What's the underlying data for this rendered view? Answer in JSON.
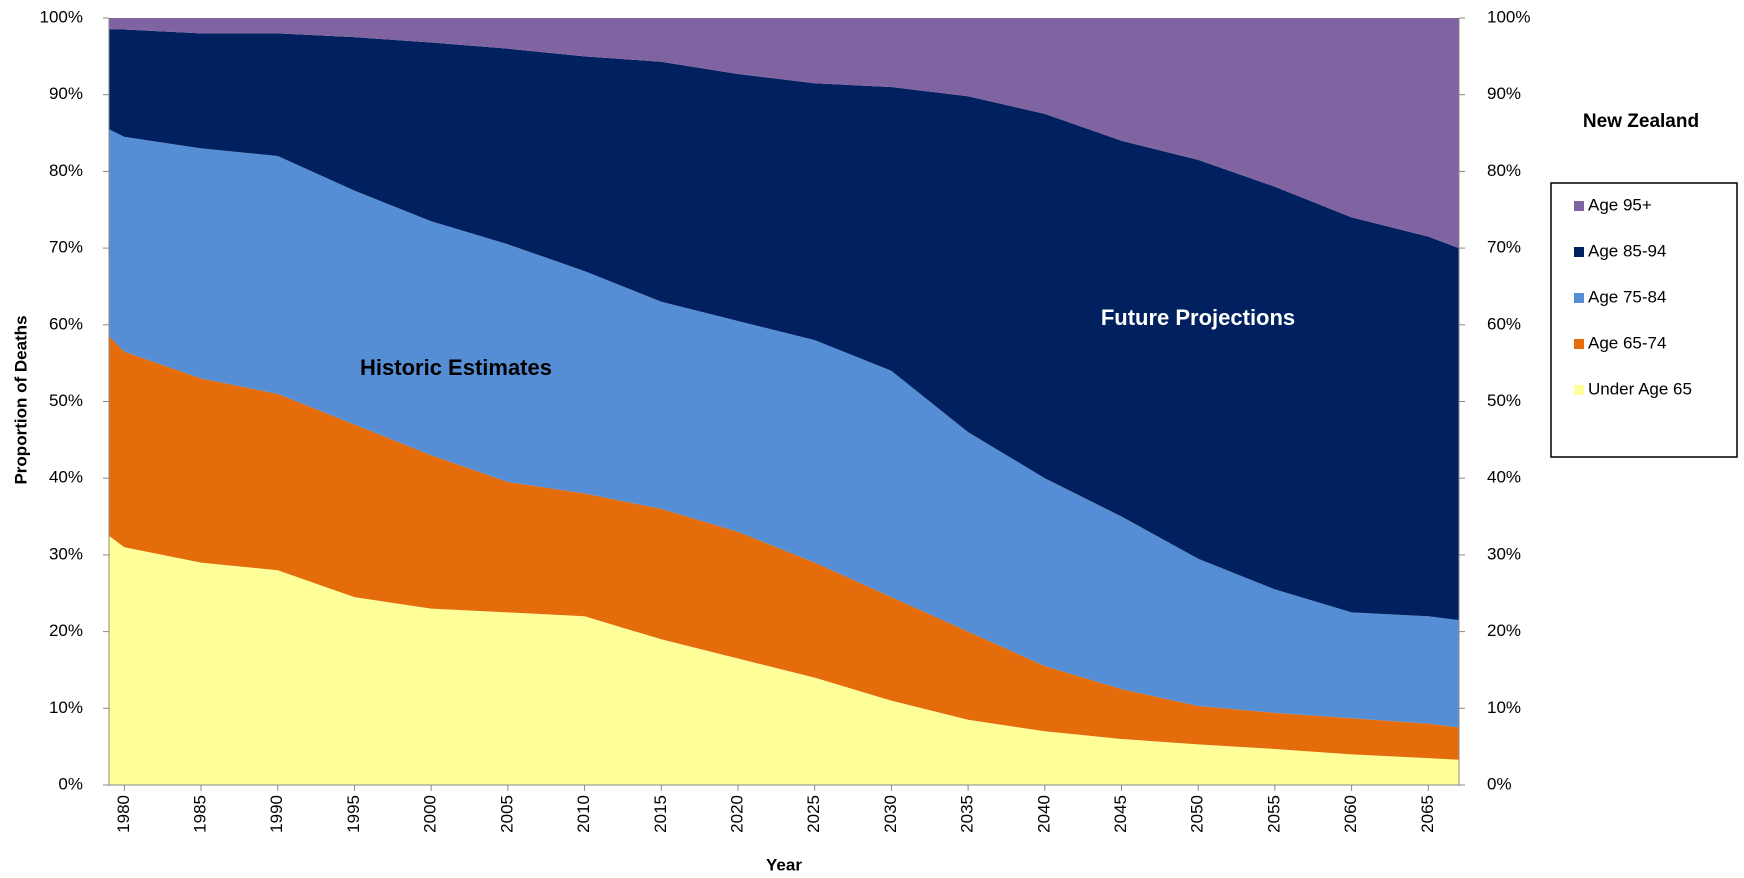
{
  "chart_data": {
    "type": "stacked_area",
    "x_label": "Year",
    "y_label": "Proportion of Deaths",
    "legend_title": "New Zealand",
    "annotations": [
      "Historic Estimates",
      "Future Projections"
    ],
    "x": [
      1979,
      1980,
      1985,
      1990,
      1995,
      2000,
      2005,
      2010,
      2015,
      2020,
      2025,
      2030,
      2035,
      2040,
      2045,
      2050,
      2055,
      2060,
      2065,
      2067
    ],
    "xlim": [
      1979,
      2067
    ],
    "xticks": [
      1980,
      1985,
      1990,
      1995,
      2000,
      2005,
      2010,
      2015,
      2020,
      2025,
      2030,
      2035,
      2040,
      2045,
      2050,
      2055,
      2060,
      2065
    ],
    "ylim": [
      0,
      100
    ],
    "yticks": [
      {
        "value": 0,
        "label": "0%"
      },
      {
        "value": 10,
        "label": "10%"
      },
      {
        "value": 20,
        "label": "20%"
      },
      {
        "value": 30,
        "label": "30%"
      },
      {
        "value": 40,
        "label": "40%"
      },
      {
        "value": 50,
        "label": "50%"
      },
      {
        "value": 60,
        "label": "60%"
      },
      {
        "value": 70,
        "label": "70%"
      },
      {
        "value": 80,
        "label": "80%"
      },
      {
        "value": 90,
        "label": "90%"
      },
      {
        "value": 100,
        "label": "100%"
      }
    ],
    "y2lim": [
      0,
      100
    ],
    "y2ticks": [
      {
        "value": 0,
        "label": "0%"
      },
      {
        "value": 10,
        "label": "10%"
      },
      {
        "value": 20,
        "label": "20%"
      },
      {
        "value": 30,
        "label": "30%"
      },
      {
        "value": 40,
        "label": "40%"
      },
      {
        "value": 50,
        "label": "50%"
      },
      {
        "value": 60,
        "label": "60%"
      },
      {
        "value": 70,
        "label": "70%"
      },
      {
        "value": 80,
        "label": "80%"
      },
      {
        "value": 90,
        "label": "90%"
      },
      {
        "value": 100,
        "label": "100%"
      }
    ],
    "legend_position": "right",
    "series": [
      {
        "name": "Under Age 65",
        "color": "#ffff99",
        "values": [
          32.5,
          31,
          29,
          28,
          24.5,
          23,
          22.5,
          22,
          19,
          16.5,
          14,
          11,
          8.5,
          7,
          6,
          5.3,
          4.7,
          4,
          3.5,
          3.3
        ]
      },
      {
        "name": "Age 65-74",
        "color": "#e46c0a",
        "values": [
          26,
          25.5,
          24,
          23,
          22.5,
          20,
          17,
          16,
          17,
          16.5,
          15,
          13.5,
          11.5,
          8.5,
          6.5,
          5,
          4.7,
          4.7,
          4.5,
          4.2
        ]
      },
      {
        "name": "Age 75-84",
        "color": "#558ed5",
        "values": [
          27,
          28,
          30,
          31,
          30.5,
          30.5,
          31,
          29,
          27,
          27.5,
          29,
          29.5,
          26,
          24.5,
          22.5,
          19.2,
          16.1,
          13.8,
          14,
          14
        ]
      },
      {
        "name": "Age 85-94",
        "color": "#002060",
        "values": [
          13,
          14,
          15,
          16,
          20,
          23.3,
          25.5,
          28,
          31.3,
          32.2,
          33.5,
          37,
          43.8,
          47.5,
          49,
          52,
          52.5,
          51.5,
          49.5,
          48.5
        ]
      },
      {
        "name": "Age 95+",
        "color": "#8064a2",
        "values": [
          1.5,
          1.5,
          2,
          2,
          2.5,
          3.2,
          4,
          5,
          5.7,
          7.3,
          8.5,
          9,
          10.2,
          12.5,
          16,
          18.5,
          22,
          26,
          28.5,
          30
        ]
      }
    ]
  }
}
